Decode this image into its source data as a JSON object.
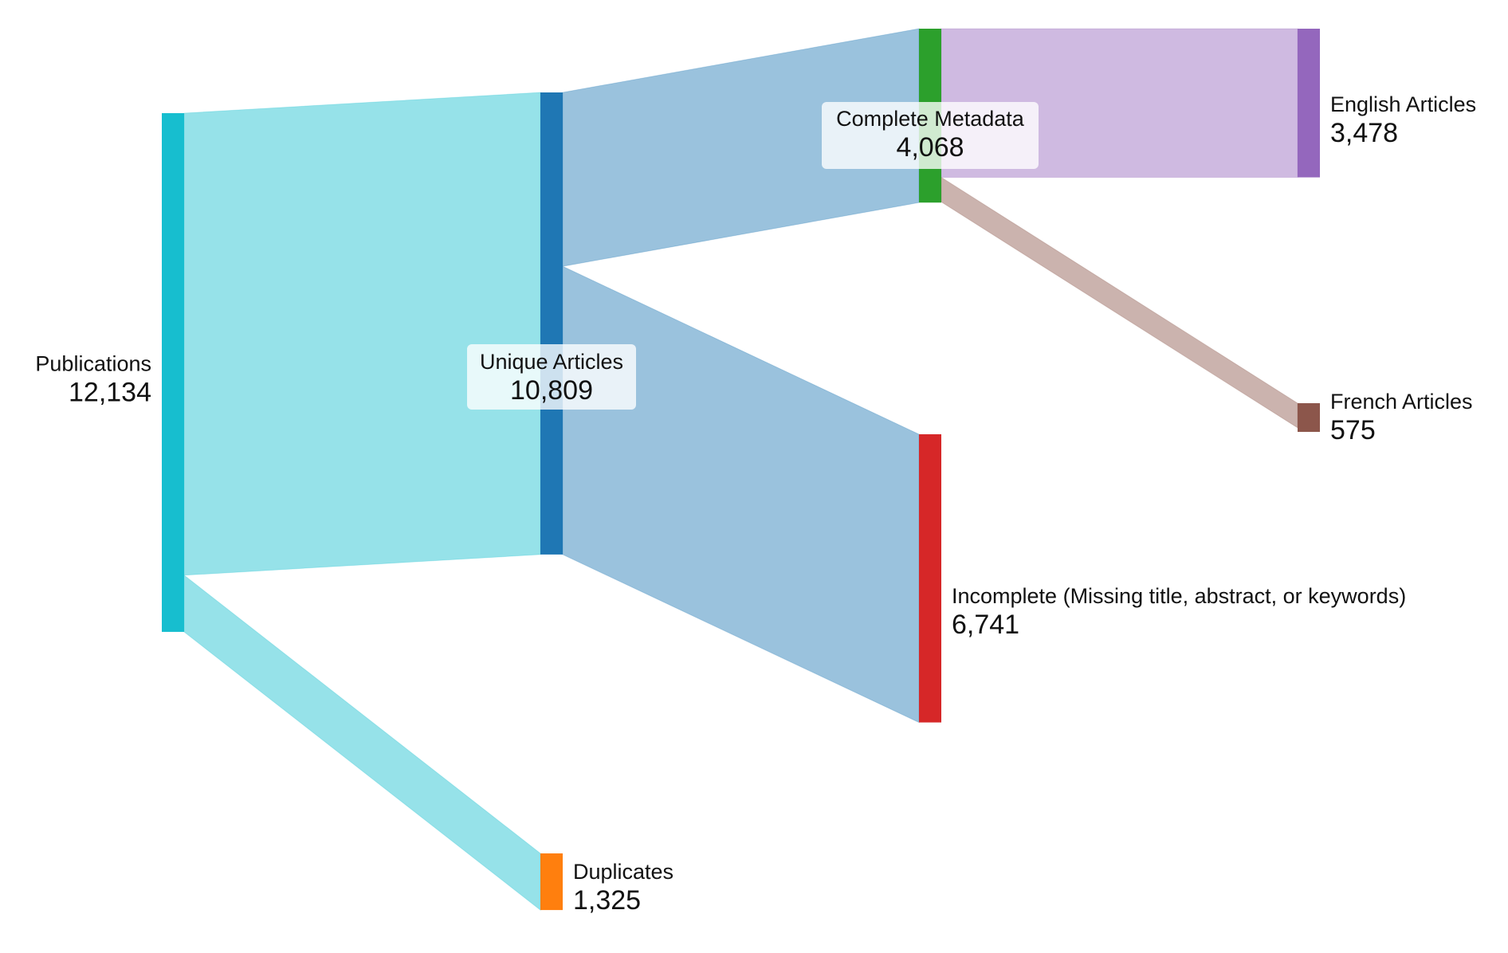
{
  "chart_data": {
    "type": "sankey",
    "nodes": [
      {
        "id": "publications",
        "name": "Publications",
        "value": 12134,
        "value_label": "12,134",
        "color": "#17becf"
      },
      {
        "id": "unique",
        "name": "Unique Articles",
        "value": 10809,
        "value_label": "10,809",
        "color": "#1f77b4"
      },
      {
        "id": "duplicates",
        "name": "Duplicates",
        "value": 1325,
        "value_label": "1,325",
        "color": "#ff7f0e"
      },
      {
        "id": "complete",
        "name": "Complete Metadata",
        "value": 4068,
        "value_label": "4,068",
        "color": "#2ca02c"
      },
      {
        "id": "incomplete",
        "name": "Incomplete (Missing title, abstract, or keywords)",
        "value": 6741,
        "value_label": "6,741",
        "color": "#d62728"
      },
      {
        "id": "english",
        "name": "English Articles",
        "value": 3478,
        "value_label": "3,478",
        "color": "#9467bd"
      },
      {
        "id": "french",
        "name": "French Articles",
        "value": 575,
        "value_label": "575",
        "color": "#8c564b"
      }
    ],
    "links": [
      {
        "source": "publications",
        "target": "unique",
        "value": 10809,
        "color": "#17becf"
      },
      {
        "source": "publications",
        "target": "duplicates",
        "value": 1325,
        "color": "#17becf"
      },
      {
        "source": "unique",
        "target": "complete",
        "value": 4068,
        "color": "#1f77b4"
      },
      {
        "source": "unique",
        "target": "incomplete",
        "value": 6741,
        "color": "#1f77b4"
      },
      {
        "source": "complete",
        "target": "english",
        "value": 3478,
        "color": "#9467bd"
      },
      {
        "source": "complete",
        "target": "french",
        "value": 575,
        "color": "#8c564b"
      }
    ]
  }
}
